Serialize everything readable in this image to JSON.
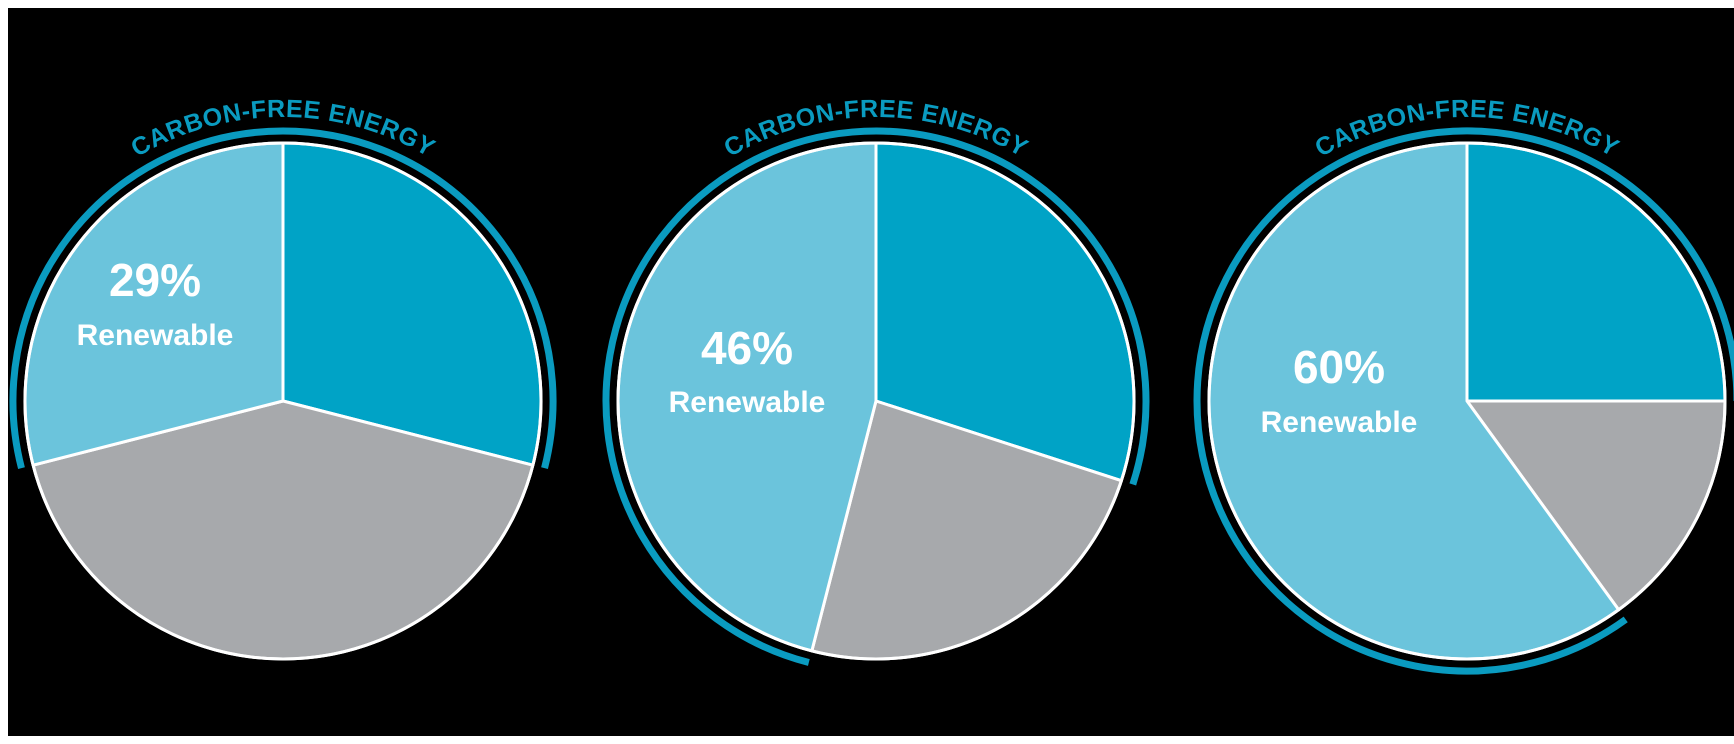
{
  "colors": {
    "background": "#000000",
    "renewable": "#6bc4dc",
    "other_carbon_free": "#00a3c6",
    "fossil": "#a7a9ac",
    "arc": "#0a9bc0",
    "text": "#ffffff"
  },
  "chart_data": [
    {
      "type": "pie",
      "arc_label": "CARBON-FREE ENERGY",
      "label_percent": "29%",
      "label_text": "Renewable",
      "slices": [
        {
          "category": "renewable",
          "value": 29
        },
        {
          "category": "other_carbon_free",
          "value": 29
        },
        {
          "category": "fossil",
          "value": 42
        }
      ],
      "carbon_free_total": 58
    },
    {
      "type": "pie",
      "arc_label": "CARBON-FREE ENERGY",
      "label_percent": "46%",
      "label_text": "Renewable",
      "slices": [
        {
          "category": "renewable",
          "value": 46
        },
        {
          "category": "other_carbon_free",
          "value": 30
        },
        {
          "category": "fossil",
          "value": 24
        }
      ],
      "carbon_free_total": 76
    },
    {
      "type": "pie",
      "arc_label": "CARBON-FREE ENERGY",
      "label_percent": "60%",
      "label_text": "Renewable",
      "slices": [
        {
          "category": "renewable",
          "value": 60
        },
        {
          "category": "other_carbon_free",
          "value": 25
        },
        {
          "category": "fossil",
          "value": 15
        }
      ],
      "carbon_free_total": 85
    }
  ]
}
